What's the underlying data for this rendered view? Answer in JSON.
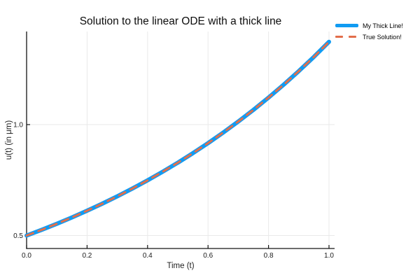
{
  "colors": {
    "background": "#ffffff",
    "grid": "#e9e9e9",
    "axis": "#141414",
    "tick_text": "#191919",
    "series1_blue": "#119bf2",
    "series2_orange": "#e26e4a"
  },
  "chart_data": {
    "type": "line",
    "title": "Solution to the linear ODE with a thick line",
    "xlabel": "Time (t)",
    "ylabel": "u(t) (in μm)",
    "xlim": [
      0.0,
      1.0
    ],
    "ylim": [
      0.44,
      1.42
    ],
    "grid": true,
    "legend_position": "top-right-outside",
    "xticks": [
      "0.0",
      "0.2",
      "0.4",
      "0.6",
      "0.8",
      "1.0"
    ],
    "yticks": [
      "0.5",
      "1.0"
    ],
    "x": [
      0.0,
      0.05,
      0.1,
      0.15,
      0.2,
      0.25,
      0.3,
      0.35,
      0.4,
      0.45,
      0.5,
      0.55,
      0.6,
      0.65,
      0.7,
      0.75,
      0.8,
      0.85,
      0.9,
      0.95,
      1.0
    ],
    "series": [
      {
        "name": "My Thick Line!",
        "color": "#119bf2",
        "style": "solid",
        "width": 6,
        "values": [
          0.5,
          0.5259,
          0.5531,
          0.5818,
          0.6119,
          0.6436,
          0.677,
          0.712,
          0.7489,
          0.7877,
          0.8285,
          0.8714,
          0.9165,
          0.964,
          1.0139,
          1.0664,
          1.1217,
          1.1798,
          1.2409,
          1.3051,
          1.3728
        ]
      },
      {
        "name": "True Solution!",
        "color": "#e26e4a",
        "style": "dash",
        "width": 3,
        "values": [
          0.5,
          0.5259,
          0.5531,
          0.5818,
          0.6119,
          0.6436,
          0.677,
          0.712,
          0.7489,
          0.7877,
          0.8285,
          0.8714,
          0.9165,
          0.964,
          1.0139,
          1.0664,
          1.1217,
          1.1798,
          1.2409,
          1.3051,
          1.3728
        ]
      }
    ]
  }
}
